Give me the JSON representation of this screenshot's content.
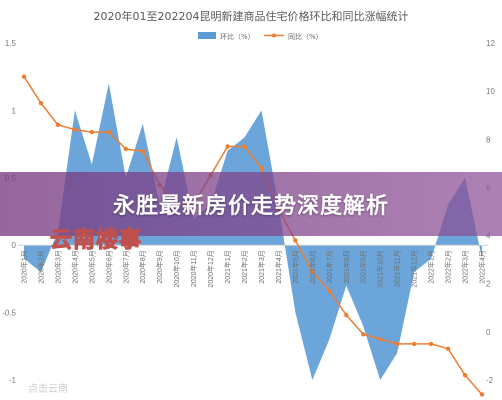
{
  "chart_data": {
    "type": "bar+line",
    "title": "2020年01至202204昆明新建商品住宅价格环比和同比涨幅统计",
    "categories": [
      "2020年1月",
      "2020年2月",
      "2020年3月",
      "2020年4月",
      "2020年5月",
      "2020年6月",
      "2020年7月",
      "2020年8月",
      "2020年9月",
      "2020年10月",
      "2020年11月",
      "2020年12月",
      "2021年1月",
      "2021年2月",
      "2021年3月",
      "2021年4月",
      "2021年5月",
      "2021年6月",
      "2021年7月",
      "2021年8月",
      "2021年9月",
      "2021年10月",
      "2021年11月",
      "2021年12月",
      "2022年1月",
      "2022年2月",
      "2022年3月",
      "2022年4月"
    ],
    "series": [
      {
        "name": "环比（%）",
        "type": "area",
        "axis": "left",
        "color": "#5b9bd5",
        "values": [
          -0.1,
          -0.2,
          0.1,
          1.0,
          0.6,
          1.2,
          0.5,
          0.9,
          0.3,
          0.8,
          0.2,
          0.3,
          0.7,
          0.8,
          1.0,
          0.3,
          -0.5,
          -1.0,
          -0.7,
          -0.3,
          -0.6,
          -1.0,
          -0.8,
          -0.2,
          -0.1,
          0.3,
          0.5,
          -0.1
        ]
      },
      {
        "name": "同比（%）",
        "type": "line",
        "axis": "right",
        "color": "#ed7d31",
        "values": [
          10.6,
          9.5,
          8.6,
          8.4,
          8.3,
          8.3,
          7.6,
          7.5,
          6.1,
          5.3,
          5.3,
          6.5,
          7.7,
          7.7,
          6.8,
          5.1,
          3.8,
          2.5,
          1.7,
          0.7,
          -0.1,
          -0.3,
          -0.5,
          -0.5,
          -0.5,
          -0.7,
          -1.8,
          -2.6
        ]
      }
    ],
    "left_axis": {
      "ticks": [
        "1.5",
        "1",
        "0.5",
        "0",
        "-0.5",
        "-1"
      ],
      "ylim": [
        -1,
        1.5
      ]
    },
    "right_axis": {
      "ticks": [
        "12",
        "10",
        "8",
        "6",
        "4",
        "2",
        "0",
        "-2"
      ],
      "ylim": [
        -2,
        12
      ]
    },
    "legend": {
      "placement": "top-center"
    },
    "grid": false
  },
  "banner": {
    "title": "永胜最新房价走势深度解析",
    "brand_stamp": "云南楼事",
    "watermark": "点击云南"
  }
}
